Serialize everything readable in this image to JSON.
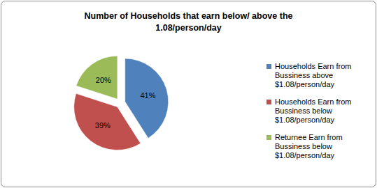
{
  "chart_data": {
    "type": "pie",
    "title": "Number of Households that earn below/ above the 1.08/person/day",
    "categories": [
      "Households Earn from Bussiness above $1.08/person/day",
      "Households Earn from Bussiness below $1.08/person/day",
      "Returnee Earn from Bussiness below $1.08/person/day"
    ],
    "values": [
      41,
      39,
      20
    ],
    "value_labels": [
      "41%",
      "39%",
      "20%"
    ],
    "colors": [
      "#4f81bd",
      "#c0504d",
      "#9bbb59"
    ],
    "data_labels": true,
    "legend": "right"
  }
}
